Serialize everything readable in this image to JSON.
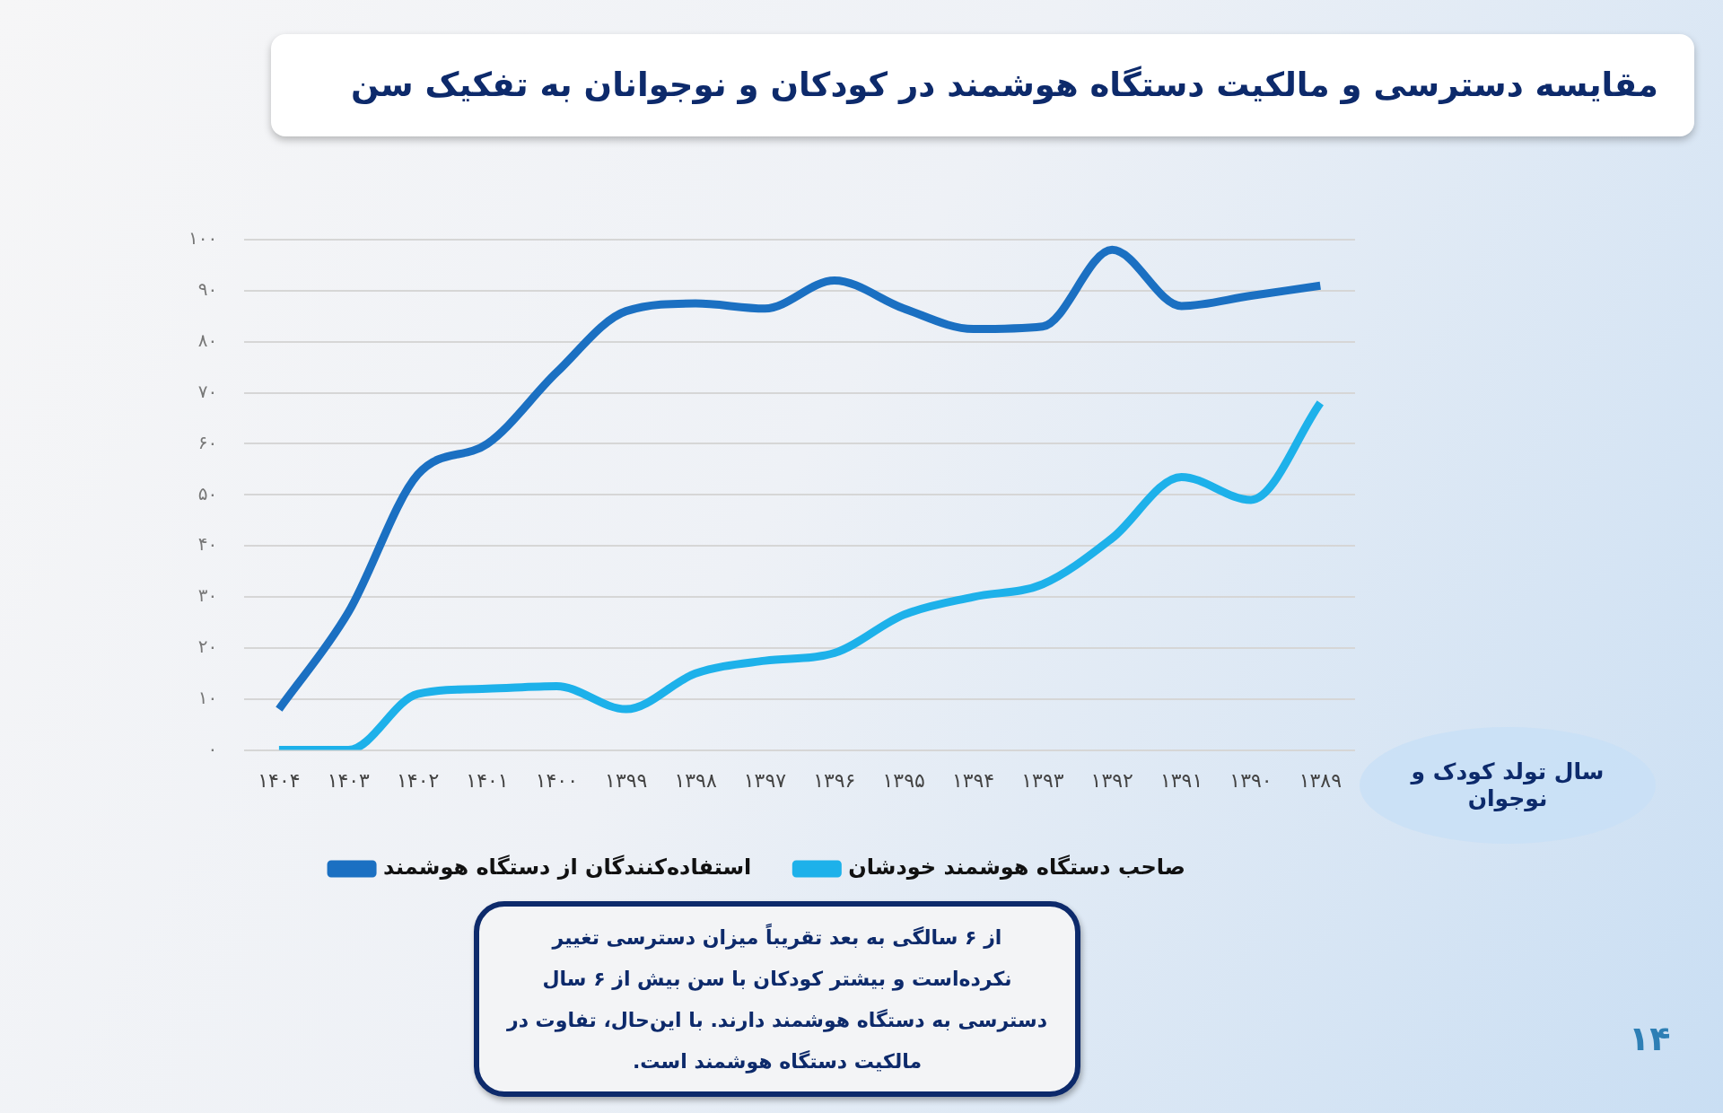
{
  "chart_data": {
    "type": "line",
    "title": "مقایسه دسترسی و مالکیت دستگاه هوشمند در کودکان و نوجوانان به تفکیک سن",
    "xlabel": "سال تولد کودک و نوجوان",
    "categories": [
      "۱۴۰۴",
      "۱۴۰۳",
      "۱۴۰۲",
      "۱۴۰۱",
      "۱۴۰۰",
      "۱۳۹۹",
      "۱۳۹۸",
      "۱۳۹۷",
      "۱۳۹۶",
      "۱۳۹۵",
      "۱۳۹۴",
      "۱۳۹۳",
      "۱۳۹۲",
      "۱۳۹۱",
      "۱۳۹۰",
      "۱۳۸۹"
    ],
    "series": [
      {
        "name": "استفاده‌کنندگان از دستگاه هوشمند",
        "color": "#1b70c2",
        "values": [
          8,
          27,
          54,
          60,
          74,
          86,
          87.5,
          86.5,
          92,
          86.5,
          82.5,
          83,
          98,
          87,
          89,
          91
        ]
      },
      {
        "name": "صاحب دستگاه هوشمند خودشان",
        "color": "#1db1ea",
        "values": [
          0,
          0,
          11,
          12,
          12.5,
          8,
          15,
          17.5,
          19,
          26.5,
          30,
          32.5,
          41.5,
          53.5,
          49,
          68
        ]
      }
    ],
    "ylim": [
      0,
      100
    ],
    "yticks": [
      {
        "value": 0,
        "label": "۰"
      },
      {
        "value": 10,
        "label": "۱۰"
      },
      {
        "value": 20,
        "label": "۲۰"
      },
      {
        "value": 30,
        "label": "۳۰"
      },
      {
        "value": 40,
        "label": "۴۰"
      },
      {
        "value": 50,
        "label": "۵۰"
      },
      {
        "value": 60,
        "label": "۶۰"
      },
      {
        "value": 70,
        "label": "۷۰"
      },
      {
        "value": 80,
        "label": "۸۰"
      },
      {
        "value": 90,
        "label": "۹۰"
      },
      {
        "value": 100,
        "label": "۱۰۰"
      }
    ],
    "grid": "y",
    "legend": "bottom",
    "marker": "none",
    "line_style": "solid",
    "annotations": [
      "از ۶ سالگی به بعد تقریباً میزان دسترسی  تغییر نکرده‌است و بیشتر کودکان با سن بیش از ۶ سال دسترسی به دستگاه هوشمند دارند. با این‌حال، تفاوت در مالکیت دستگاه هوشمند است.",
      "۱۴"
    ]
  }
}
